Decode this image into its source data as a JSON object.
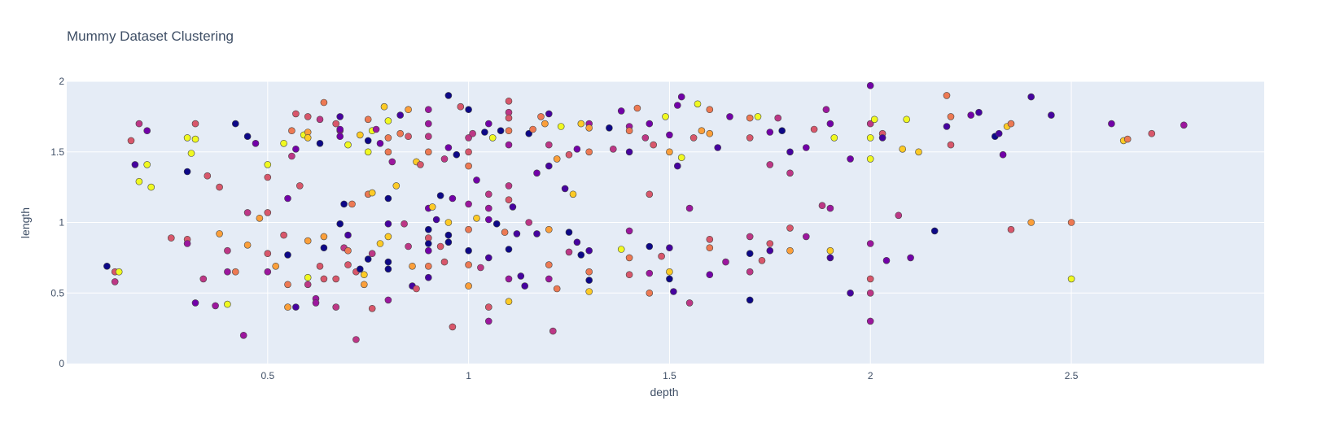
{
  "chart_data": {
    "type": "scatter",
    "title": "Mummy Dataset Clustering",
    "xlabel": "depth",
    "ylabel": "length",
    "xlim": [
      0.0,
      2.98
    ],
    "ylim": [
      0,
      2
    ],
    "x_ticks": [
      0.5,
      1,
      1.5,
      2,
      2.5
    ],
    "x_tick_labels": [
      "0.5",
      "1",
      "1.5",
      "2",
      "2.5"
    ],
    "y_ticks": [
      0,
      0.5,
      1,
      1.5,
      2
    ],
    "y_tick_labels": [
      "0",
      "0.5",
      "1",
      "1.5",
      "2"
    ],
    "grid": true,
    "legend": "none",
    "colors": {
      "plot_background": "#e5ecf6",
      "grid": "#ffffff",
      "marker_outline": "#444444",
      "text": "#3f4f66",
      "palette": [
        "#0d0887",
        "#46039f",
        "#7201a8",
        "#9c179e",
        "#bd3786",
        "#d8576b",
        "#ed7953",
        "#fb9f3a",
        "#fdca26",
        "#f0f921"
      ]
    },
    "points": [
      [
        0.1,
        0.69,
        0
      ],
      [
        0.12,
        0.65,
        5
      ],
      [
        0.12,
        0.58,
        4
      ],
      [
        0.13,
        0.65,
        9
      ],
      [
        0.16,
        1.58,
        5
      ],
      [
        0.17,
        1.41,
        1
      ],
      [
        0.18,
        1.29,
        9
      ],
      [
        0.18,
        1.7,
        4
      ],
      [
        0.2,
        1.65,
        2
      ],
      [
        0.2,
        1.41,
        9
      ],
      [
        0.21,
        1.25,
        9
      ],
      [
        0.26,
        0.89,
        5
      ],
      [
        0.3,
        1.6,
        9
      ],
      [
        0.3,
        1.36,
        0
      ],
      [
        0.3,
        0.88,
        5
      ],
      [
        0.3,
        0.85,
        3
      ],
      [
        0.31,
        1.49,
        9
      ],
      [
        0.32,
        1.59,
        9
      ],
      [
        0.32,
        1.7,
        5
      ],
      [
        0.32,
        0.43,
        2
      ],
      [
        0.34,
        0.6,
        4
      ],
      [
        0.35,
        1.33,
        5
      ],
      [
        0.37,
        0.41,
        3
      ],
      [
        0.38,
        1.25,
        5
      ],
      [
        0.38,
        0.92,
        7
      ],
      [
        0.4,
        0.42,
        9
      ],
      [
        0.4,
        0.65,
        3
      ],
      [
        0.4,
        0.8,
        4
      ],
      [
        0.42,
        1.7,
        0
      ],
      [
        0.42,
        0.65,
        6
      ],
      [
        0.44,
        0.2,
        3
      ],
      [
        0.45,
        1.61,
        0
      ],
      [
        0.45,
        1.07,
        4
      ],
      [
        0.45,
        0.84,
        7
      ],
      [
        0.47,
        1.56,
        2
      ],
      [
        0.48,
        1.03,
        7
      ],
      [
        0.5,
        1.41,
        9
      ],
      [
        0.5,
        1.32,
        5
      ],
      [
        0.5,
        1.07,
        5
      ],
      [
        0.5,
        0.78,
        5
      ],
      [
        0.5,
        0.65,
        3
      ],
      [
        0.52,
        0.69,
        7
      ],
      [
        0.54,
        0.91,
        5
      ],
      [
        0.54,
        1.56,
        9
      ],
      [
        0.55,
        1.17,
        2
      ],
      [
        0.55,
        0.77,
        0
      ],
      [
        0.55,
        0.56,
        6
      ],
      [
        0.55,
        0.4,
        7
      ],
      [
        0.56,
        1.65,
        6
      ],
      [
        0.56,
        1.47,
        4
      ],
      [
        0.57,
        1.77,
        5
      ],
      [
        0.57,
        0.4,
        1
      ],
      [
        0.57,
        1.52,
        2
      ],
      [
        0.58,
        1.26,
        5
      ],
      [
        0.59,
        1.62,
        9
      ],
      [
        0.6,
        1.64,
        7
      ],
      [
        0.6,
        1.6,
        8
      ],
      [
        0.6,
        1.75,
        5
      ],
      [
        0.6,
        0.87,
        7
      ],
      [
        0.6,
        0.61,
        9
      ],
      [
        0.6,
        0.56,
        4
      ],
      [
        0.62,
        0.46,
        3
      ],
      [
        0.62,
        0.43,
        3
      ],
      [
        0.63,
        1.56,
        0
      ],
      [
        0.63,
        1.73,
        4
      ],
      [
        0.63,
        0.69,
        5
      ],
      [
        0.64,
        0.82,
        0
      ],
      [
        0.64,
        0.9,
        7
      ],
      [
        0.64,
        0.6,
        5
      ],
      [
        0.64,
        1.85,
        6
      ],
      [
        0.67,
        1.7,
        5
      ],
      [
        0.67,
        0.6,
        5
      ],
      [
        0.67,
        0.4,
        4
      ],
      [
        0.68,
        1.65,
        3
      ],
      [
        0.68,
        1.66,
        2
      ],
      [
        0.68,
        1.61,
        2
      ],
      [
        0.68,
        1.75,
        1
      ],
      [
        0.68,
        0.99,
        0
      ],
      [
        0.69,
        1.13,
        0
      ],
      [
        0.69,
        0.82,
        4
      ],
      [
        0.7,
        0.8,
        6
      ],
      [
        0.7,
        0.91,
        1
      ],
      [
        0.7,
        1.55,
        9
      ],
      [
        0.7,
        0.7,
        5
      ],
      [
        0.71,
        1.13,
        6
      ],
      [
        0.72,
        0.65,
        5
      ],
      [
        0.72,
        0.17,
        4
      ],
      [
        0.73,
        0.67,
        0
      ],
      [
        0.73,
        1.62,
        8
      ],
      [
        0.74,
        0.56,
        7
      ],
      [
        0.74,
        0.63,
        8
      ],
      [
        0.75,
        1.5,
        9
      ],
      [
        0.75,
        1.58,
        0
      ],
      [
        0.75,
        1.73,
        6
      ],
      [
        0.75,
        0.74,
        0
      ],
      [
        0.75,
        1.2,
        6
      ],
      [
        0.76,
        0.78,
        4
      ],
      [
        0.76,
        1.21,
        8
      ],
      [
        0.76,
        0.39,
        5
      ],
      [
        0.76,
        1.65,
        9
      ],
      [
        0.77,
        1.66,
        3
      ],
      [
        0.78,
        1.56,
        2
      ],
      [
        0.78,
        0.85,
        8
      ],
      [
        0.79,
        1.82,
        8
      ],
      [
        0.8,
        1.72,
        9
      ],
      [
        0.8,
        1.6,
        6
      ],
      [
        0.8,
        1.5,
        6
      ],
      [
        0.8,
        1.17,
        0
      ],
      [
        0.8,
        0.99,
        1
      ],
      [
        0.8,
        0.9,
        8
      ],
      [
        0.8,
        0.72,
        0
      ],
      [
        0.8,
        0.67,
        0
      ],
      [
        0.8,
        0.45,
        3
      ],
      [
        0.81,
        1.43,
        3
      ],
      [
        0.82,
        1.26,
        8
      ],
      [
        0.83,
        1.76,
        1
      ],
      [
        0.83,
        1.63,
        6
      ],
      [
        0.84,
        0.99,
        4
      ],
      [
        0.85,
        0.83,
        4
      ],
      [
        0.85,
        1.8,
        7
      ],
      [
        0.85,
        1.61,
        5
      ],
      [
        0.86,
        0.69,
        7
      ],
      [
        0.86,
        0.55,
        1
      ],
      [
        0.87,
        0.53,
        5
      ],
      [
        0.87,
        1.43,
        8
      ],
      [
        0.88,
        1.41,
        5
      ],
      [
        0.9,
        1.7,
        3
      ],
      [
        0.9,
        1.8,
        3
      ],
      [
        0.9,
        1.61,
        4
      ],
      [
        0.9,
        1.5,
        6
      ],
      [
        0.9,
        1.1,
        2
      ],
      [
        0.9,
        0.95,
        0
      ],
      [
        0.9,
        0.89,
        5
      ],
      [
        0.9,
        0.85,
        0
      ],
      [
        0.9,
        0.8,
        2
      ],
      [
        0.9,
        0.69,
        6
      ],
      [
        0.9,
        0.61,
        1
      ],
      [
        0.91,
        1.11,
        8
      ],
      [
        0.92,
        1.02,
        1
      ],
      [
        0.93,
        1.19,
        0
      ],
      [
        0.93,
        0.83,
        5
      ],
      [
        0.94,
        1.45,
        4
      ],
      [
        0.94,
        0.72,
        5
      ],
      [
        0.95,
        1.9,
        0
      ],
      [
        0.95,
        1.53,
        2
      ],
      [
        0.95,
        0.91,
        0
      ],
      [
        0.95,
        0.86,
        0
      ],
      [
        0.95,
        1.0,
        8
      ],
      [
        0.96,
        0.26,
        5
      ],
      [
        0.96,
        1.17,
        2
      ],
      [
        0.97,
        1.48,
        0
      ],
      [
        0.98,
        1.82,
        5
      ],
      [
        1.0,
        1.8,
        0
      ],
      [
        1.0,
        1.6,
        4
      ],
      [
        1.0,
        1.5,
        5
      ],
      [
        1.0,
        1.4,
        6
      ],
      [
        1.0,
        1.13,
        3
      ],
      [
        1.0,
        0.95,
        6
      ],
      [
        1.0,
        0.8,
        0
      ],
      [
        1.0,
        0.7,
        6
      ],
      [
        1.0,
        0.55,
        7
      ],
      [
        1.01,
        1.63,
        4
      ],
      [
        1.02,
        1.3,
        2
      ],
      [
        1.02,
        1.03,
        8
      ],
      [
        1.03,
        0.68,
        4
      ],
      [
        1.04,
        1.64,
        0
      ],
      [
        1.05,
        1.7,
        2
      ],
      [
        1.05,
        1.2,
        4
      ],
      [
        1.05,
        1.1,
        3
      ],
      [
        1.05,
        1.02,
        2
      ],
      [
        1.05,
        0.75,
        1
      ],
      [
        1.05,
        0.4,
        5
      ],
      [
        1.05,
        0.3,
        3
      ],
      [
        1.06,
        1.6,
        9
      ],
      [
        1.07,
        0.99,
        0
      ],
      [
        1.08,
        1.65,
        0
      ],
      [
        1.09,
        0.93,
        6
      ],
      [
        1.1,
        1.86,
        5
      ],
      [
        1.1,
        1.78,
        4
      ],
      [
        1.1,
        1.74,
        5
      ],
      [
        1.1,
        1.65,
        6
      ],
      [
        1.1,
        1.55,
        3
      ],
      [
        1.1,
        1.26,
        4
      ],
      [
        1.1,
        1.16,
        5
      ],
      [
        1.1,
        0.81,
        0
      ],
      [
        1.1,
        0.6,
        3
      ],
      [
        1.1,
        0.44,
        8
      ],
      [
        1.11,
        1.11,
        1
      ],
      [
        1.12,
        0.92,
        1
      ],
      [
        1.13,
        0.62,
        1
      ],
      [
        1.14,
        0.55,
        1
      ],
      [
        1.15,
        1.63,
        0
      ],
      [
        1.15,
        1.0,
        4
      ],
      [
        1.16,
        1.66,
        6
      ],
      [
        1.17,
        1.35,
        2
      ],
      [
        1.17,
        0.92,
        1
      ],
      [
        1.18,
        1.75,
        6
      ],
      [
        1.19,
        1.7,
        7
      ],
      [
        1.2,
        1.77,
        1
      ],
      [
        1.2,
        1.55,
        4
      ],
      [
        1.2,
        1.4,
        1
      ],
      [
        1.2,
        0.95,
        7
      ],
      [
        1.2,
        0.7,
        6
      ],
      [
        1.2,
        0.6,
        3
      ],
      [
        1.21,
        0.23,
        4
      ],
      [
        1.22,
        1.45,
        7
      ],
      [
        1.22,
        0.53,
        6
      ],
      [
        1.23,
        1.68,
        9
      ],
      [
        1.24,
        1.24,
        1
      ],
      [
        1.25,
        1.48,
        5
      ],
      [
        1.25,
        0.93,
        0
      ],
      [
        1.25,
        0.79,
        4
      ],
      [
        1.26,
        1.2,
        8
      ],
      [
        1.27,
        1.52,
        2
      ],
      [
        1.27,
        0.86,
        1
      ],
      [
        1.28,
        0.77,
        0
      ],
      [
        1.28,
        1.7,
        8
      ],
      [
        1.3,
        1.7,
        3
      ],
      [
        1.3,
        1.67,
        7
      ],
      [
        1.3,
        1.5,
        6
      ],
      [
        1.3,
        0.8,
        1
      ],
      [
        1.3,
        0.65,
        6
      ],
      [
        1.3,
        0.59,
        0
      ],
      [
        1.3,
        0.51,
        8
      ],
      [
        1.35,
        1.67,
        0
      ],
      [
        1.36,
        1.52,
        4
      ],
      [
        1.38,
        0.81,
        9
      ],
      [
        1.38,
        1.79,
        2
      ],
      [
        1.4,
        1.68,
        3
      ],
      [
        1.4,
        1.65,
        6
      ],
      [
        1.4,
        1.5,
        1
      ],
      [
        1.4,
        0.94,
        3
      ],
      [
        1.4,
        0.75,
        6
      ],
      [
        1.4,
        0.63,
        5
      ],
      [
        1.42,
        1.81,
        6
      ],
      [
        1.44,
        1.6,
        4
      ],
      [
        1.45,
        1.7,
        2
      ],
      [
        1.45,
        1.2,
        5
      ],
      [
        1.45,
        0.83,
        0
      ],
      [
        1.45,
        0.64,
        3
      ],
      [
        1.45,
        0.5,
        6
      ],
      [
        1.46,
        1.55,
        5
      ],
      [
        1.48,
        0.76,
        5
      ],
      [
        1.49,
        1.75,
        9
      ],
      [
        1.5,
        1.62,
        2
      ],
      [
        1.5,
        1.5,
        7
      ],
      [
        1.5,
        0.82,
        1
      ],
      [
        1.5,
        0.65,
        8
      ],
      [
        1.5,
        0.6,
        0
      ],
      [
        1.51,
        0.51,
        1
      ],
      [
        1.52,
        1.4,
        1
      ],
      [
        1.52,
        1.83,
        2
      ],
      [
        1.53,
        1.89,
        2
      ],
      [
        1.53,
        1.46,
        9
      ],
      [
        1.55,
        1.1,
        3
      ],
      [
        1.55,
        0.43,
        4
      ],
      [
        1.56,
        1.6,
        5
      ],
      [
        1.57,
        1.84,
        9
      ],
      [
        1.58,
        1.65,
        7
      ],
      [
        1.6,
        1.8,
        6
      ],
      [
        1.6,
        1.63,
        7
      ],
      [
        1.6,
        0.88,
        5
      ],
      [
        1.6,
        0.82,
        6
      ],
      [
        1.6,
        0.63,
        2
      ],
      [
        1.62,
        1.53,
        1
      ],
      [
        1.64,
        0.72,
        3
      ],
      [
        1.65,
        1.75,
        2
      ],
      [
        1.7,
        1.74,
        6
      ],
      [
        1.7,
        1.6,
        5
      ],
      [
        1.7,
        0.9,
        4
      ],
      [
        1.7,
        0.78,
        0
      ],
      [
        1.7,
        0.65,
        4
      ],
      [
        1.7,
        0.45,
        0
      ],
      [
        1.72,
        1.75,
        9
      ],
      [
        1.73,
        0.73,
        5
      ],
      [
        1.75,
        1.64,
        2
      ],
      [
        1.75,
        1.41,
        4
      ],
      [
        1.75,
        0.85,
        5
      ],
      [
        1.75,
        0.8,
        1
      ],
      [
        1.77,
        1.74,
        4
      ],
      [
        1.78,
        1.65,
        0
      ],
      [
        1.8,
        1.5,
        1
      ],
      [
        1.8,
        1.35,
        4
      ],
      [
        1.8,
        0.96,
        5
      ],
      [
        1.8,
        0.8,
        7
      ],
      [
        1.84,
        1.53,
        2
      ],
      [
        1.84,
        0.9,
        3
      ],
      [
        1.86,
        1.66,
        5
      ],
      [
        1.88,
        1.12,
        4
      ],
      [
        1.89,
        1.8,
        3
      ],
      [
        1.9,
        1.7,
        2
      ],
      [
        1.9,
        1.1,
        3
      ],
      [
        1.9,
        0.8,
        8
      ],
      [
        1.9,
        0.75,
        1
      ],
      [
        1.91,
        1.6,
        9
      ],
      [
        1.95,
        1.45,
        2
      ],
      [
        1.95,
        0.5,
        1
      ],
      [
        2.0,
        1.97,
        2
      ],
      [
        2.0,
        1.7,
        4
      ],
      [
        2.0,
        1.6,
        9
      ],
      [
        2.0,
        1.45,
        9
      ],
      [
        2.0,
        0.85,
        3
      ],
      [
        2.0,
        0.6,
        5
      ],
      [
        2.0,
        0.5,
        4
      ],
      [
        2.0,
        0.3,
        3
      ],
      [
        2.01,
        1.73,
        9
      ],
      [
        2.03,
        1.63,
        5
      ],
      [
        2.03,
        1.6,
        1
      ],
      [
        2.04,
        0.73,
        2
      ],
      [
        2.07,
        1.05,
        4
      ],
      [
        2.08,
        1.52,
        8
      ],
      [
        2.09,
        1.73,
        9
      ],
      [
        2.1,
        0.75,
        2
      ],
      [
        2.12,
        1.5,
        8
      ],
      [
        2.16,
        0.94,
        0
      ],
      [
        2.19,
        1.68,
        1
      ],
      [
        2.19,
        1.9,
        6
      ],
      [
        2.2,
        1.75,
        6
      ],
      [
        2.2,
        1.55,
        5
      ],
      [
        2.25,
        1.76,
        2
      ],
      [
        2.27,
        1.78,
        1
      ],
      [
        2.31,
        1.61,
        0
      ],
      [
        2.32,
        1.63,
        1
      ],
      [
        2.33,
        1.48,
        2
      ],
      [
        2.34,
        1.68,
        8
      ],
      [
        2.35,
        1.7,
        6
      ],
      [
        2.35,
        0.95,
        5
      ],
      [
        2.4,
        1.89,
        1
      ],
      [
        2.4,
        1.0,
        7
      ],
      [
        2.45,
        1.76,
        1
      ],
      [
        2.5,
        1.0,
        6
      ],
      [
        2.5,
        0.6,
        9
      ],
      [
        2.6,
        1.7,
        2
      ],
      [
        2.63,
        1.58,
        8
      ],
      [
        2.64,
        1.59,
        6
      ],
      [
        2.7,
        1.63,
        5
      ],
      [
        2.78,
        1.69,
        3
      ]
    ]
  }
}
